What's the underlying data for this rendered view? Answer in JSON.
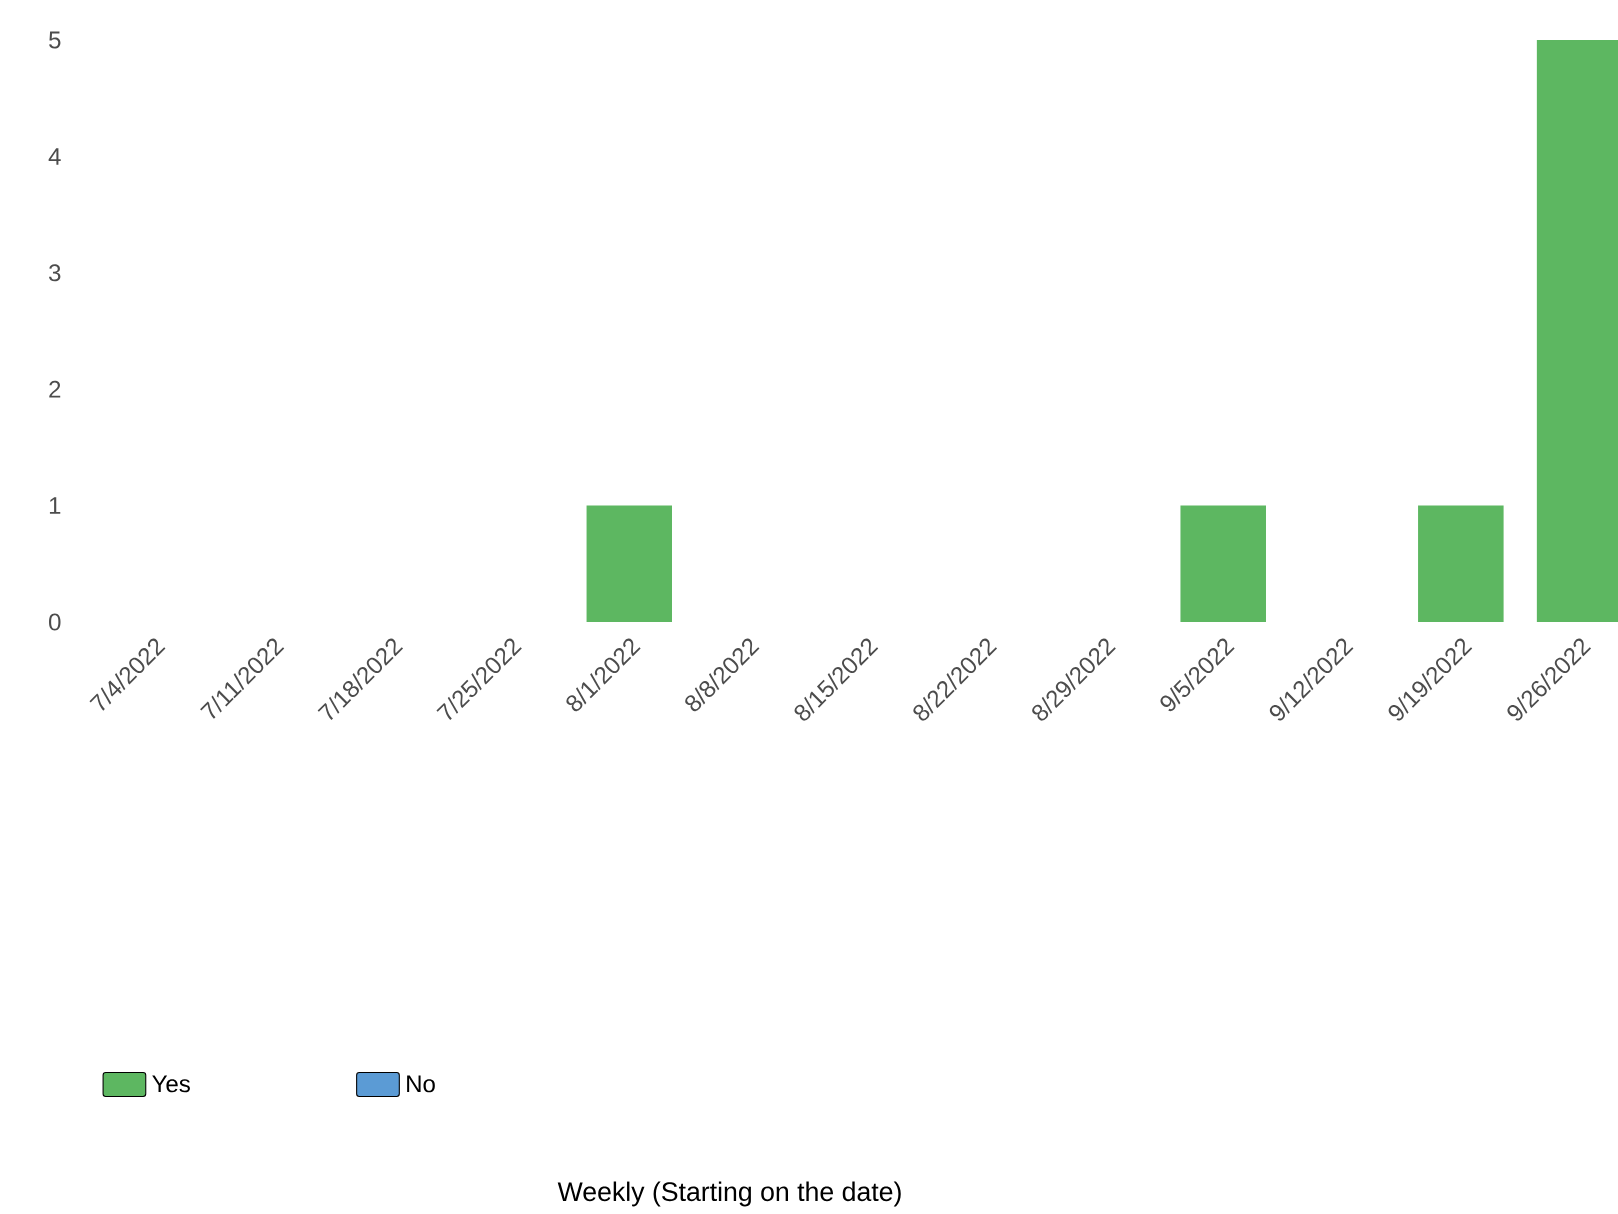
{
  "chart_data": {
    "type": "bar",
    "stacked": true,
    "annotations": [
      "Weekly (Starting on the date)"
    ],
    "categories": [
      "7/4/2022",
      "7/11/2022",
      "7/18/2022",
      "7/25/2022",
      "8/1/2022",
      "8/8/2022",
      "8/15/2022",
      "8/22/2022",
      "8/29/2022",
      "9/5/2022",
      "9/12/2022",
      "9/19/2022",
      "9/26/2022"
    ],
    "series": [
      {
        "name": "Yes",
        "color": "#5db761",
        "values": [
          0,
          0,
          0,
          0,
          1,
          0,
          0,
          0,
          0,
          1,
          0,
          1,
          5
        ]
      },
      {
        "name": "No",
        "color": "#5b9bd5",
        "values": [
          0,
          0,
          0,
          0,
          0,
          0,
          0,
          0,
          0,
          0,
          0,
          0,
          0
        ]
      }
    ],
    "ylim": [
      0,
      5
    ],
    "yticks": [
      0,
      1,
      2,
      3,
      4,
      5
    ],
    "legend": "bottom"
  }
}
